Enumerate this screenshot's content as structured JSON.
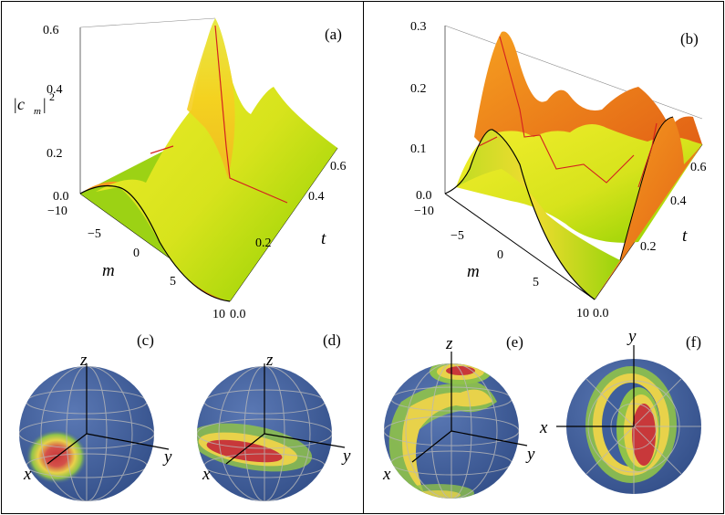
{
  "colors": {
    "sphere_base": "#3f5f9c",
    "hot": "#c8383a",
    "warm": "#e8d24a",
    "mid": "#8fc24a",
    "surface_high": "#f0e020",
    "surface_low": "#8ad000",
    "surface_side": "#e8701a",
    "ridge_line": "#d42020"
  },
  "panels": {
    "a": {
      "label": "(a)",
      "ylabel_base": "|c",
      "ylabel_sub": "m",
      "ylabel_sup": "2",
      "z_ticks": [
        "0.6",
        "0.4",
        "0.2",
        "0.0"
      ],
      "m_ticks": [
        "−10",
        "−5",
        "0",
        "5",
        "10"
      ],
      "t_ticks": [
        "0.0",
        "0.2",
        "0.4",
        "0.6"
      ],
      "m_axis_label": "m",
      "t_axis_label": "t"
    },
    "b": {
      "label": "(b)",
      "z_ticks": [
        "0.3",
        "0.2",
        "0.1",
        "0.0"
      ],
      "m_ticks": [
        "−10",
        "−5",
        "0",
        "5",
        "10"
      ],
      "t_ticks": [
        "0.0",
        "0.2",
        "0.4",
        "0.6"
      ],
      "m_axis_label": "m",
      "t_axis_label": "t"
    },
    "c": {
      "label": "(c)",
      "axes": [
        "z",
        "x",
        "y"
      ]
    },
    "d": {
      "label": "(d)",
      "axes": [
        "z",
        "x",
        "y"
      ]
    },
    "e": {
      "label": "(e)",
      "axes": [
        "z",
        "x",
        "y"
      ]
    },
    "f": {
      "label": "(f)",
      "axes": [
        "y",
        "x"
      ]
    }
  }
}
